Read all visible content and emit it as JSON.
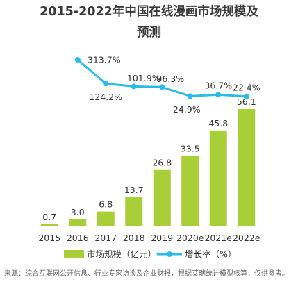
{
  "chart_data": {
    "type": "bar+line",
    "title_line1": "2015-2022年中国在线漫画市场规模及",
    "title_line2": "预测",
    "categories": [
      "2015",
      "2016",
      "2017",
      "2018",
      "2019",
      "2020e",
      "2021e",
      "2022e"
    ],
    "series": [
      {
        "name": "市场规模（亿元）",
        "type": "bar",
        "values": [
          0.7,
          3.0,
          6.8,
          13.7,
          26.8,
          33.5,
          45.8,
          56.1
        ],
        "labels": [
          "0.7",
          "3.0",
          "6.8",
          "13.7",
          "26.8",
          "33.5",
          "45.8",
          "56.1"
        ]
      },
      {
        "name": "增长率（%）",
        "type": "line",
        "x": [
          "2016",
          "2017",
          "2018",
          "2019",
          "2020e",
          "2021e",
          "2022e"
        ],
        "values": [
          313.7,
          124.2,
          101.9,
          96.3,
          24.9,
          36.7,
          22.4
        ],
        "labels": [
          "313.7%",
          "124.2%",
          "101.9%",
          "96.3%",
          "24.9%",
          "36.7%",
          "22.4%"
        ]
      }
    ],
    "legend_position": "bottom",
    "grid": false,
    "colors": {
      "bar": "#a9cf38",
      "line": "#2bbbe8",
      "text": "#333333",
      "axis": "#333333"
    }
  },
  "source": "来源：综合互联网公开信息、行业专家访谈及企业财报，根据艾瑞统计模型核算，仅供参考。"
}
